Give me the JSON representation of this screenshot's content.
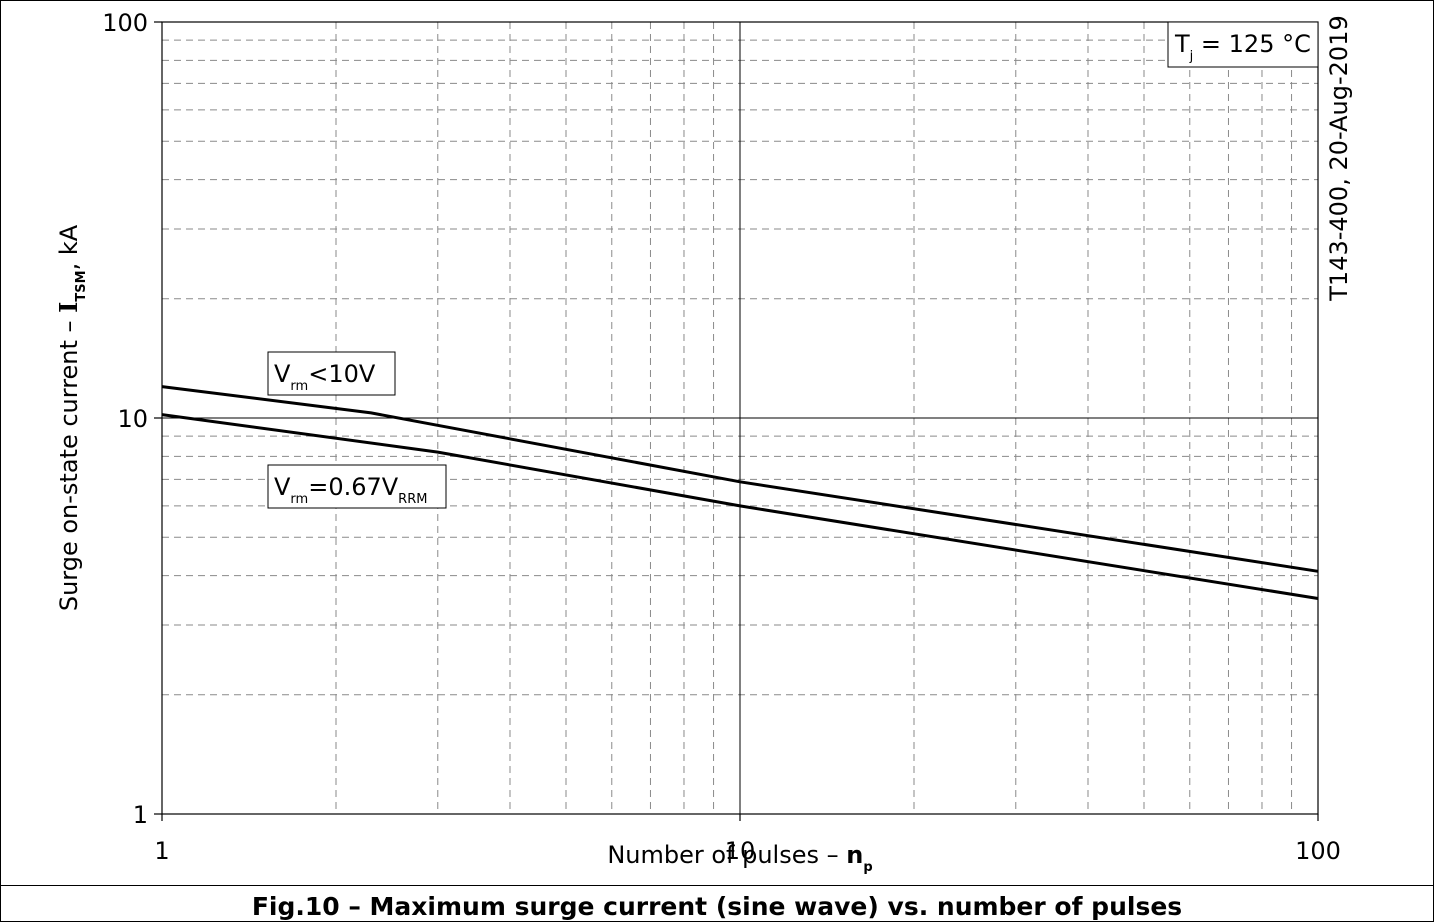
{
  "chart_data": {
    "type": "line",
    "x_scale": "log",
    "y_scale": "log",
    "xlim": [
      1,
      100
    ],
    "ylim": [
      1,
      100
    ],
    "grid": true,
    "x_ticks": [
      "1",
      "10",
      "100"
    ],
    "y_ticks": [
      "1",
      "10",
      "100"
    ],
    "xlabel": {
      "text": "Number of pulses – ",
      "symbol": "n",
      "subscript": "p"
    },
    "ylabel": {
      "text": "Surge on-state current – ",
      "symbol": "I",
      "subscript": "TSM",
      "unit": ", kA"
    },
    "series": [
      {
        "label": {
          "base": "V",
          "sub1": "rm",
          "text": "<10V",
          "sub2": ""
        },
        "points": [
          [
            1,
            12.0
          ],
          [
            2.3,
            10.3
          ],
          [
            10,
            6.9
          ],
          [
            100,
            4.1
          ]
        ]
      },
      {
        "label": {
          "base": "V",
          "sub1": "rm",
          "text": "=0.67V",
          "sub2": "RRM"
        },
        "points": [
          [
            1,
            10.2
          ],
          [
            3,
            8.2
          ],
          [
            10,
            6.0
          ],
          [
            100,
            3.5
          ]
        ]
      }
    ],
    "condition": {
      "base": "T",
      "sub": "j",
      "text": " = 125 °C"
    },
    "side_note": "T143-400, 20-Aug-2019"
  },
  "caption": "Fig.10 – Maximum surge current (sine wave) vs. number of pulses"
}
